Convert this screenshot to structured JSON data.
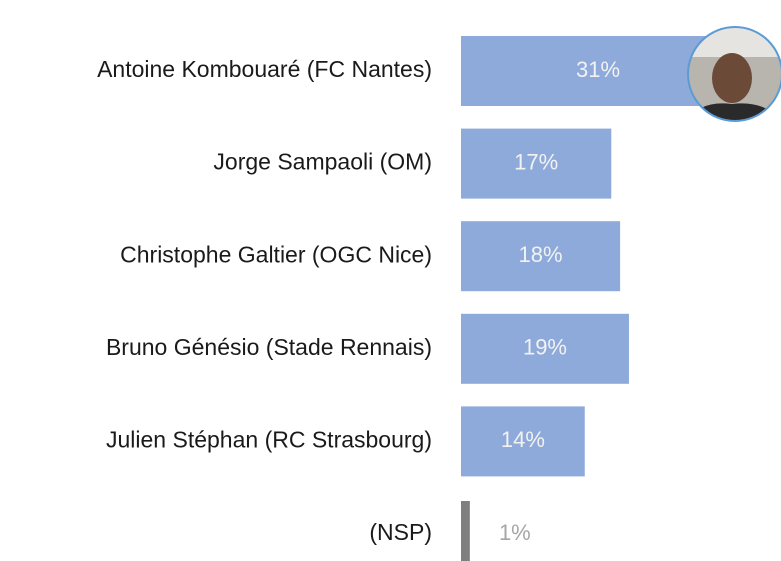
{
  "chart_data": {
    "type": "hbar",
    "categories": [
      "Antoine Kombouaré (FC Nantes)",
      "Jorge Sampaoli (OM)",
      "Christophe Galtier (OGC Nice)",
      "Bruno Génésio (Stade Rennais)",
      "Julien Stéphan (RC Strasbourg)",
      "(NSP)"
    ],
    "values": [
      31,
      17,
      18,
      19,
      14,
      1
    ],
    "value_labels": [
      "31%",
      "17%",
      "18%",
      "19%",
      "14%",
      "1%"
    ],
    "colors": [
      "#8eaadb",
      "#8eaadb",
      "#8eaadb",
      "#8eaadb",
      "#8eaadb",
      "#7f7f7f"
    ]
  }
}
